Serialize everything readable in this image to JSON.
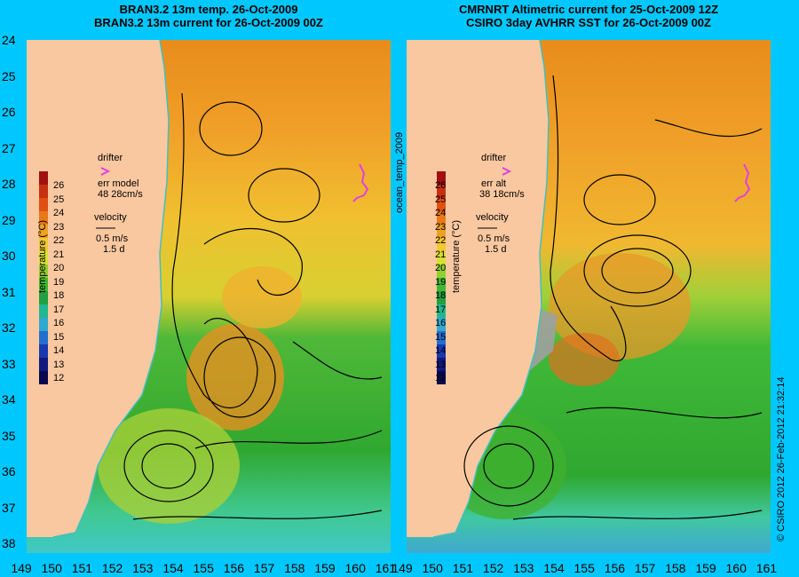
{
  "left_panel": {
    "title_line1": "BRAN3.2 13m temp. 26-Oct-2009",
    "title_line2": "BRAN3.2 13m current for 26-Oct-2009 00Z",
    "drifter_label": "drifter",
    "err_label": "err model",
    "err_values": "48 28cm/s",
    "velocity_label": "velocity",
    "velocity_scale": "0.5 m/s",
    "velocity_time": "1.5 d"
  },
  "right_panel": {
    "title_line1": "CMRNRT Altimetric current for 25-Oct-2009 12Z",
    "title_line2": "CSIRO 3day AVHRR SST for 26-Oct-2009 00Z",
    "drifter_label": "drifter",
    "err_label": "err alt",
    "err_values": "38 18cm/s",
    "velocity_label": "velocity",
    "velocity_scale": "0.5 m/s",
    "velocity_time": "1.5 d"
  },
  "vertical_label": "ocean_temp_2009",
  "credit": "© CSIRO 2012   26-Feb-2012 21:32:14",
  "colorbar": {
    "label": "temperature (°C)",
    "ticks": [
      "26",
      "25",
      "24",
      "23",
      "22",
      "21",
      "20",
      "19",
      "18",
      "17",
      "16",
      "15",
      "14",
      "13",
      "12"
    ]
  },
  "y_axis_ticks": [
    "24",
    "25",
    "26",
    "27",
    "28",
    "29",
    "30",
    "31",
    "32",
    "33",
    "34",
    "35",
    "36",
    "37",
    "38"
  ],
  "x_axis_ticks": [
    "149",
    "150",
    "151",
    "152",
    "153",
    "154",
    "155",
    "156",
    "157",
    "158",
    "159",
    "160",
    "161"
  ],
  "colors": {
    "background": "#00c8ff",
    "land": "#fac8a0",
    "warm": "#e8901e",
    "mid": "#f0c832",
    "cool": "#30b030",
    "cold": "#30c8a0",
    "drifter_track": "#e040e0",
    "coastline": "#40c0c0",
    "cloud_mask": "#a0a0a0"
  },
  "map_data": {
    "lon_range": [
      149,
      161
    ],
    "lat_range": [
      24,
      38.5
    ]
  }
}
